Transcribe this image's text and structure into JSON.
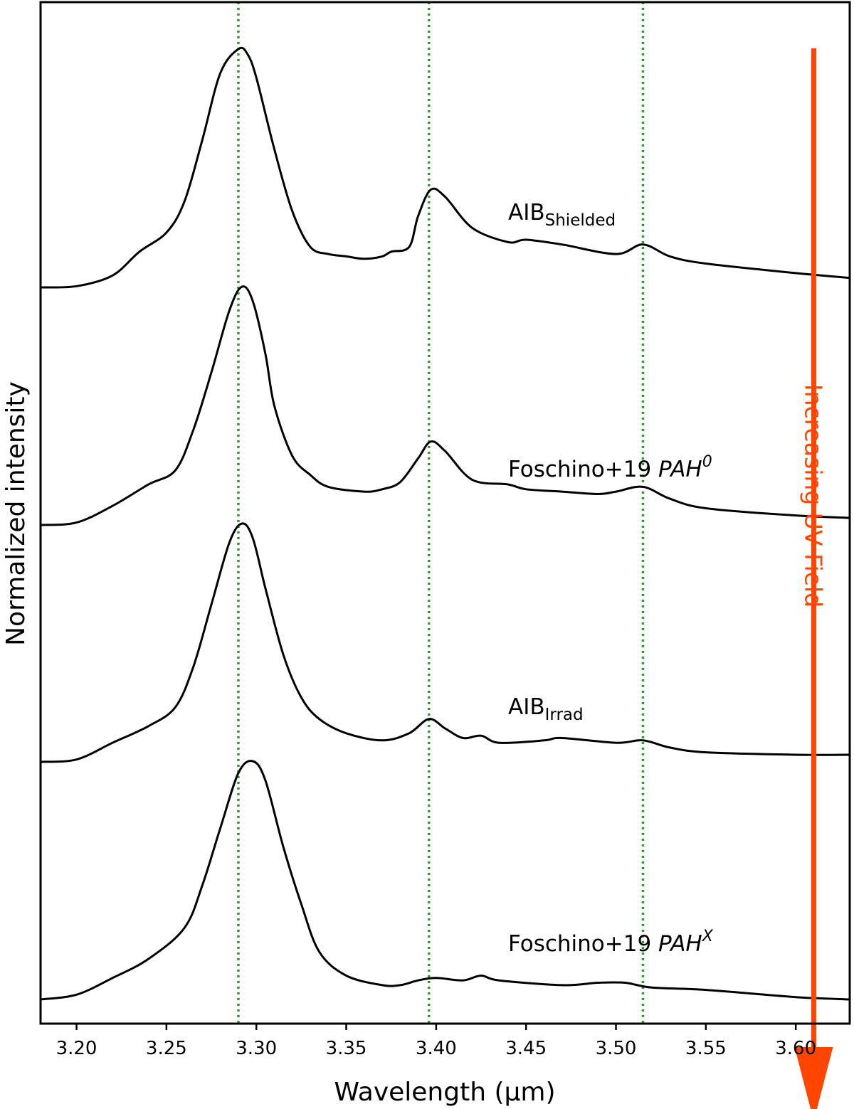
{
  "chart_data": {
    "type": "line",
    "title": "",
    "xlabel": "Wavelength (μm)",
    "ylabel": "Normalized intensity",
    "xlim": [
      3.18,
      3.63
    ],
    "x_ticks": [
      3.2,
      3.25,
      3.3,
      3.35,
      3.4,
      3.45,
      3.5,
      3.55,
      3.6
    ],
    "x_tick_labels": [
      "3.20",
      "3.25",
      "3.30",
      "3.35",
      "3.40",
      "3.45",
      "3.50",
      "3.55",
      "3.60"
    ],
    "y_ticks_shown": false,
    "y_note": "spectra vertically offset; y values in normalized units (0 = baseline of each stacked panel, 1 = peak)",
    "vertical_lines": {
      "x": [
        3.29,
        3.396,
        3.515
      ],
      "color": "#2ca02c",
      "style": "dotted"
    },
    "line_color": "#000000",
    "series": [
      {
        "name": "AIB",
        "subscript": "Shielded",
        "italic": false,
        "offset_index": 3,
        "points": [
          [
            3.18,
            0.0
          ],
          [
            3.2,
            0.005
          ],
          [
            3.22,
            0.05
          ],
          [
            3.235,
            0.15
          ],
          [
            3.25,
            0.23
          ],
          [
            3.26,
            0.36
          ],
          [
            3.27,
            0.62
          ],
          [
            3.28,
            0.9
          ],
          [
            3.29,
            1.0
          ],
          [
            3.295,
            0.98
          ],
          [
            3.3,
            0.88
          ],
          [
            3.31,
            0.58
          ],
          [
            3.32,
            0.32
          ],
          [
            3.33,
            0.17
          ],
          [
            3.34,
            0.14
          ],
          [
            3.35,
            0.13
          ],
          [
            3.36,
            0.12
          ],
          [
            3.37,
            0.13
          ],
          [
            3.375,
            0.15
          ],
          [
            3.385,
            0.17
          ],
          [
            3.39,
            0.3
          ],
          [
            3.397,
            0.41
          ],
          [
            3.405,
            0.38
          ],
          [
            3.42,
            0.25
          ],
          [
            3.44,
            0.19
          ],
          [
            3.45,
            0.2
          ],
          [
            3.47,
            0.18
          ],
          [
            3.5,
            0.14
          ],
          [
            3.515,
            0.18
          ],
          [
            3.53,
            0.13
          ],
          [
            3.55,
            0.1
          ],
          [
            3.6,
            0.06
          ],
          [
            3.63,
            0.04
          ]
        ]
      },
      {
        "name": "Foschino+19 ",
        "super": "0",
        "italic_part": "PAH",
        "offset_index": 2,
        "points": [
          [
            3.18,
            0.0
          ],
          [
            3.2,
            0.01
          ],
          [
            3.22,
            0.08
          ],
          [
            3.24,
            0.17
          ],
          [
            3.255,
            0.23
          ],
          [
            3.265,
            0.4
          ],
          [
            3.275,
            0.64
          ],
          [
            3.285,
            0.9
          ],
          [
            3.292,
            1.0
          ],
          [
            3.298,
            0.94
          ],
          [
            3.305,
            0.72
          ],
          [
            3.31,
            0.5
          ],
          [
            3.32,
            0.29
          ],
          [
            3.33,
            0.21
          ],
          [
            3.34,
            0.16
          ],
          [
            3.36,
            0.14
          ],
          [
            3.37,
            0.15
          ],
          [
            3.38,
            0.18
          ],
          [
            3.39,
            0.28
          ],
          [
            3.397,
            0.35
          ],
          [
            3.405,
            0.31
          ],
          [
            3.42,
            0.19
          ],
          [
            3.44,
            0.17
          ],
          [
            3.45,
            0.15
          ],
          [
            3.47,
            0.14
          ],
          [
            3.49,
            0.13
          ],
          [
            3.5,
            0.14
          ],
          [
            3.515,
            0.16
          ],
          [
            3.53,
            0.11
          ],
          [
            3.55,
            0.07
          ],
          [
            3.6,
            0.04
          ],
          [
            3.63,
            0.03
          ]
        ]
      },
      {
        "name": "AIB",
        "subscript": "Irrad",
        "italic": false,
        "offset_index": 1,
        "points": [
          [
            3.18,
            0.0
          ],
          [
            3.2,
            0.01
          ],
          [
            3.22,
            0.08
          ],
          [
            3.24,
            0.15
          ],
          [
            3.255,
            0.23
          ],
          [
            3.265,
            0.4
          ],
          [
            3.275,
            0.66
          ],
          [
            3.285,
            0.92
          ],
          [
            3.292,
            1.0
          ],
          [
            3.298,
            0.94
          ],
          [
            3.305,
            0.73
          ],
          [
            3.315,
            0.45
          ],
          [
            3.325,
            0.27
          ],
          [
            3.335,
            0.18
          ],
          [
            3.35,
            0.12
          ],
          [
            3.37,
            0.09
          ],
          [
            3.385,
            0.12
          ],
          [
            3.396,
            0.18
          ],
          [
            3.405,
            0.14
          ],
          [
            3.415,
            0.1
          ],
          [
            3.425,
            0.11
          ],
          [
            3.435,
            0.08
          ],
          [
            3.46,
            0.09
          ],
          [
            3.47,
            0.1
          ],
          [
            3.5,
            0.08
          ],
          [
            3.515,
            0.09
          ],
          [
            3.53,
            0.06
          ],
          [
            3.55,
            0.04
          ],
          [
            3.6,
            0.03
          ],
          [
            3.63,
            0.03
          ]
        ]
      },
      {
        "name": "Foschino+19 ",
        "super": "X",
        "italic_part": "PAH",
        "offset_index": 0,
        "points": [
          [
            3.18,
            0.0
          ],
          [
            3.2,
            0.02
          ],
          [
            3.22,
            0.09
          ],
          [
            3.24,
            0.17
          ],
          [
            3.26,
            0.3
          ],
          [
            3.27,
            0.48
          ],
          [
            3.28,
            0.72
          ],
          [
            3.29,
            0.95
          ],
          [
            3.298,
            1.0
          ],
          [
            3.305,
            0.92
          ],
          [
            3.315,
            0.64
          ],
          [
            3.325,
            0.4
          ],
          [
            3.335,
            0.2
          ],
          [
            3.35,
            0.1
          ],
          [
            3.37,
            0.06
          ],
          [
            3.38,
            0.06
          ],
          [
            3.39,
            0.08
          ],
          [
            3.4,
            0.09
          ],
          [
            3.415,
            0.08
          ],
          [
            3.425,
            0.1
          ],
          [
            3.435,
            0.08
          ],
          [
            3.47,
            0.06
          ],
          [
            3.49,
            0.07
          ],
          [
            3.505,
            0.07
          ],
          [
            3.52,
            0.05
          ],
          [
            3.55,
            0.04
          ],
          [
            3.6,
            0.01
          ],
          [
            3.63,
            0.0
          ]
        ]
      }
    ],
    "annotation": {
      "text": "Increasing UV Field",
      "color": "#ff4500",
      "direction": "down",
      "x": 3.61
    }
  }
}
